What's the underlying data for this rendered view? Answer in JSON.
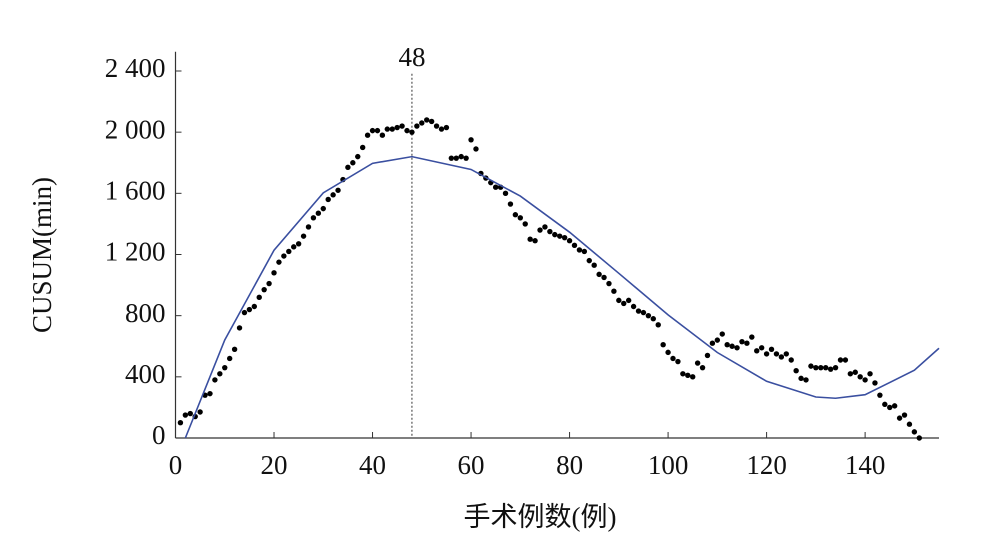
{
  "chart_data": {
    "type": "scatter",
    "xlabel": "手术例数(例)",
    "ylabel": "CUSUM(min)",
    "xlim": [
      0,
      155
    ],
    "ylim": [
      0,
      2500
    ],
    "xticks": [
      0,
      20,
      40,
      60,
      80,
      100,
      120,
      140
    ],
    "yticks": [
      0,
      400,
      800,
      {
        "value": 1200,
        "label": "1 200"
      },
      {
        "value": 1600,
        "label": "1 600"
      },
      {
        "value": 2000,
        "label": "2 000"
      },
      {
        "value": 2400,
        "label": "2 400"
      }
    ],
    "annotations": [
      {
        "x": 48
      }
    ],
    "series": [
      {
        "type": "scatter",
        "color": "#000000",
        "x": [
          1,
          2,
          3,
          4,
          5,
          6,
          7,
          8,
          9,
          10,
          11,
          12,
          13,
          14,
          15,
          16,
          17,
          18,
          19,
          20,
          21,
          22,
          23,
          24,
          25,
          26,
          27,
          28,
          29,
          30,
          31,
          32,
          33,
          34,
          35,
          36,
          37,
          38,
          39,
          40,
          41,
          42,
          43,
          44,
          45,
          46,
          47,
          48,
          49,
          50,
          51,
          52,
          53,
          54,
          55,
          56,
          57,
          58,
          59,
          60,
          61,
          62,
          63,
          64,
          65,
          66,
          67,
          68,
          69,
          70,
          71,
          72,
          73,
          74,
          75,
          76,
          77,
          78,
          79,
          80,
          81,
          82,
          83,
          84,
          85,
          86,
          87,
          88,
          89,
          90,
          91,
          92,
          93,
          94,
          95,
          96,
          97,
          98,
          99,
          100,
          101,
          102,
          103,
          104,
          105,
          106,
          107,
          108,
          109,
          110,
          111,
          112,
          113,
          114,
          115,
          116,
          117,
          118,
          119,
          120,
          121,
          122,
          123,
          124,
          125,
          126,
          127,
          128,
          129,
          130,
          131,
          132,
          133,
          134,
          135,
          136,
          137,
          138,
          139,
          140,
          141,
          142,
          143,
          144,
          145,
          146,
          147,
          148,
          149,
          150,
          151
        ],
        "values": [
          100,
          150,
          160,
          140,
          170,
          280,
          290,
          380,
          420,
          460,
          520,
          580,
          720,
          820,
          840,
          860,
          920,
          970,
          1010,
          1080,
          1150,
          1190,
          1220,
          1250,
          1270,
          1320,
          1380,
          1440,
          1470,
          1500,
          1560,
          1590,
          1620,
          1690,
          1770,
          1800,
          1840,
          1900,
          1980,
          2010,
          2010,
          1980,
          2020,
          2020,
          2030,
          2040,
          2010,
          2000,
          2040,
          2060,
          2080,
          2070,
          2040,
          2020,
          2030,
          1830,
          1830,
          1840,
          1830,
          1950,
          1890,
          1730,
          1700,
          1670,
          1640,
          1640,
          1600,
          1530,
          1460,
          1440,
          1400,
          1300,
          1290,
          1360,
          1380,
          1350,
          1330,
          1320,
          1310,
          1290,
          1260,
          1230,
          1220,
          1160,
          1130,
          1070,
          1050,
          1010,
          960,
          900,
          880,
          900,
          860,
          830,
          820,
          800,
          780,
          740,
          610,
          560,
          520,
          500,
          420,
          410,
          400,
          490,
          460,
          540,
          620,
          640,
          680,
          610,
          600,
          590,
          630,
          620,
          660,
          570,
          590,
          550,
          580,
          550,
          530,
          550,
          510,
          440,
          390,
          380,
          470,
          460,
          460,
          460,
          450,
          460,
          510,
          510,
          420,
          430,
          400,
          380,
          420,
          360,
          280,
          220,
          200,
          210,
          130,
          150,
          90,
          40,
          0
        ]
      },
      {
        "type": "line",
        "color": "#3a4fa0",
        "x": [
          2,
          10,
          20,
          30,
          40,
          48,
          60,
          70,
          80,
          90,
          100,
          110,
          120,
          130,
          134,
          140,
          150,
          155
        ],
        "values": [
          0,
          641,
          1228,
          1603,
          1796,
          1840,
          1756,
          1582,
          1346,
          1077,
          805,
          559,
          371,
          268,
          260,
          283,
          443,
          587
        ]
      }
    ]
  }
}
